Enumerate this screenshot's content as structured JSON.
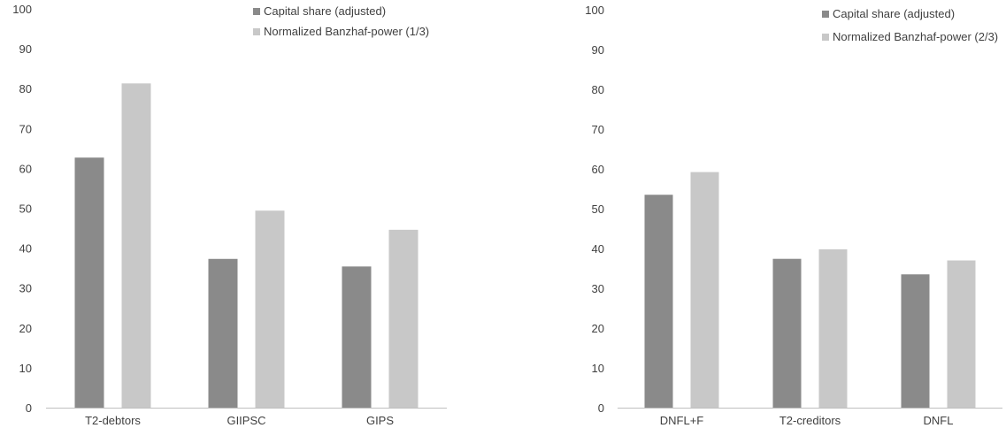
{
  "chart_data": [
    {
      "type": "bar",
      "categories": [
        "T2-debtors",
        "GIIPSC",
        "GIPS"
      ],
      "series": [
        {
          "name": "Capital share (adjusted)",
          "values": [
            62.7,
            37.3,
            35.4
          ]
        },
        {
          "name": "Normalized Banzhaf-power (1/3)",
          "values": [
            81.3,
            49.4,
            44.6
          ]
        }
      ],
      "ylim": [
        0,
        100
      ],
      "yticks": [
        0,
        10,
        20,
        30,
        40,
        50,
        60,
        70,
        80,
        90,
        100
      ],
      "grid": false,
      "legend_position": "top-right",
      "colors": [
        "#8a8a8a",
        "#c8c8c8"
      ]
    },
    {
      "type": "bar",
      "categories": [
        "DNFL+F",
        "T2-creditors",
        "DNFL"
      ],
      "series": [
        {
          "name": "Capital share (adjusted)",
          "values": [
            53.5,
            37.4,
            33.5
          ]
        },
        {
          "name": "Normalized Banzhaf-power (2/3)",
          "values": [
            59.2,
            39.8,
            37.0
          ]
        }
      ],
      "ylim": [
        0,
        100
      ],
      "yticks": [
        0,
        10,
        20,
        30,
        40,
        50,
        60,
        70,
        80,
        90,
        100
      ],
      "grid": false,
      "legend_position": "top-right",
      "colors": [
        "#8a8a8a",
        "#c8c8c8"
      ]
    }
  ]
}
